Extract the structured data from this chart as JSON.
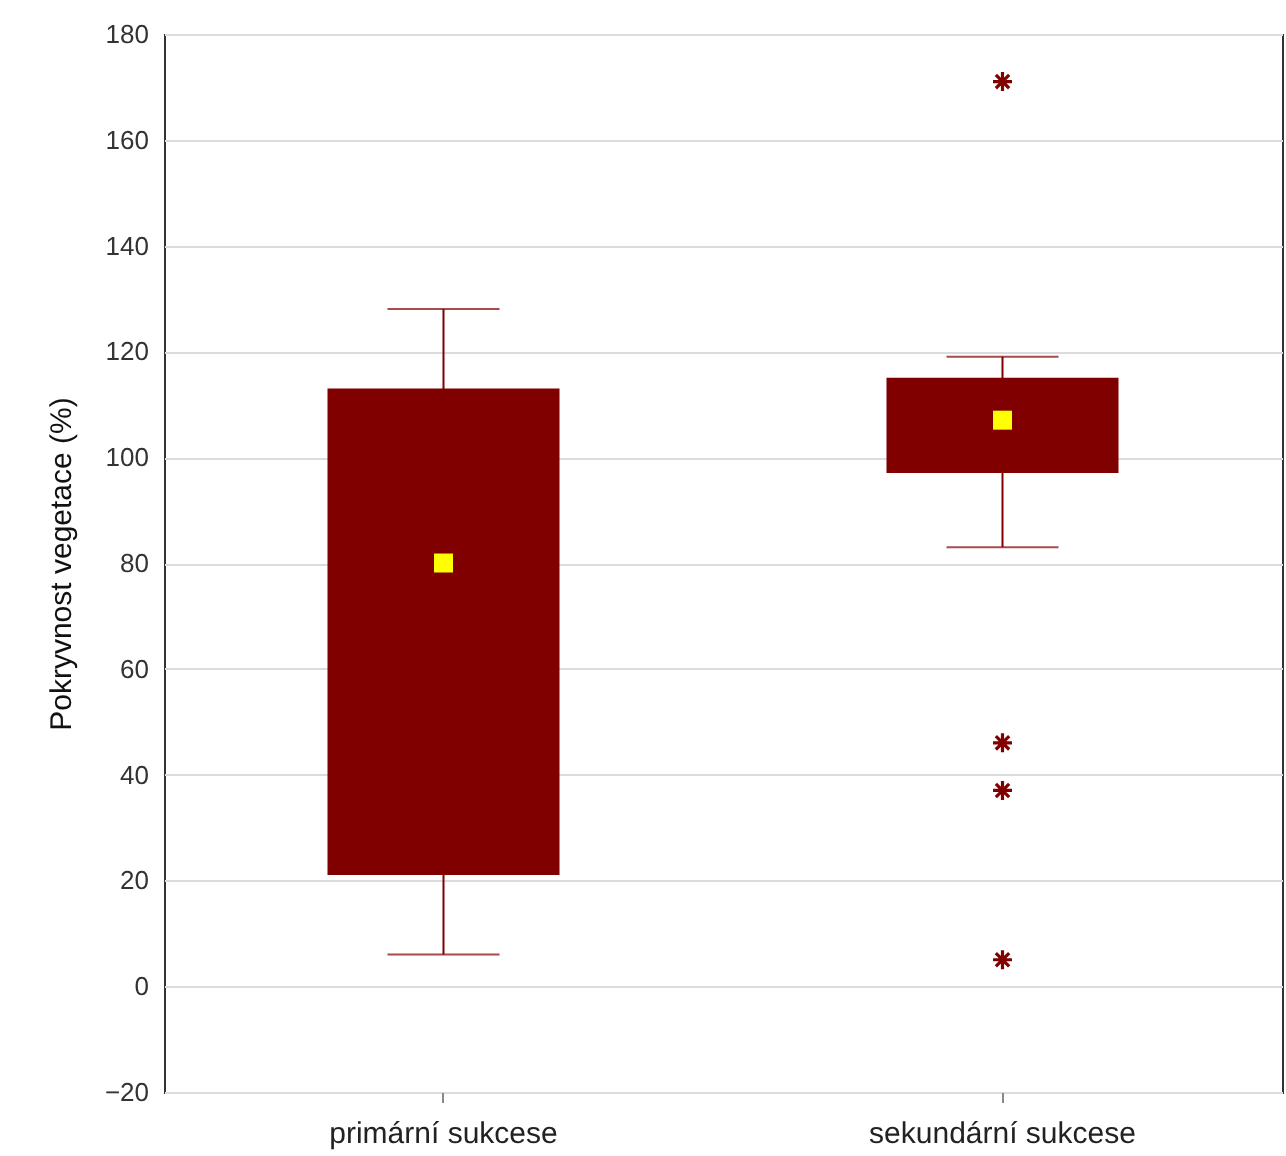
{
  "chart_data": {
    "type": "box",
    "ylabel": "Pokryvnost vegetace (%)",
    "categories": [
      "primární sukcese",
      "sekundární sukcese"
    ],
    "series": [
      {
        "color": "#800000",
        "boxes": [
          {
            "low": 6,
            "q1": 21,
            "median": 80,
            "q3": 113,
            "high": 128
          },
          {
            "low": 83,
            "q1": 97,
            "median": 107,
            "q3": 115,
            "high": 119,
            "outliers": [
              171,
              46,
              37,
              5
            ]
          }
        ]
      }
    ],
    "ylim": [
      -20,
      180
    ],
    "yticks": [
      -20,
      0,
      20,
      40,
      60,
      80,
      100,
      120,
      140,
      160,
      180
    ],
    "grid": "y"
  }
}
